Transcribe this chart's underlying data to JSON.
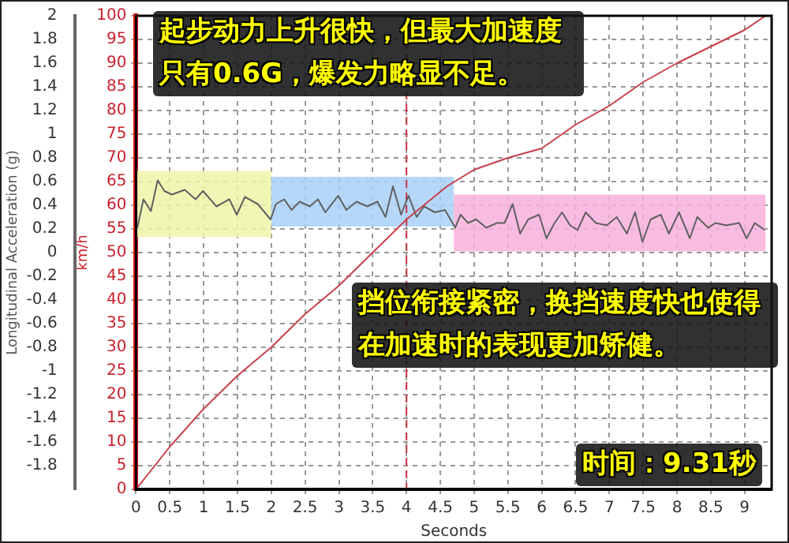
{
  "chart_data": {
    "type": "line",
    "xlabel": "Seconds",
    "ylabel": "Longitudinal Acceleration (g)",
    "y2label": "km/h",
    "annotations": [
      "起步动力上升很快，但最大加速度只有0.6G，爆发力略显不足。",
      "挡位衔接紧密，换挡速度快也使得在加速时的表现更加矫健。",
      "时间：9.31秒"
    ],
    "xlim": [
      0,
      9.4
    ],
    "xticks": [
      0,
      0.5,
      1,
      1.5,
      2,
      2.5,
      3,
      3.5,
      4,
      4.5,
      5,
      5.5,
      6,
      6.5,
      7,
      7.5,
      8,
      8.5,
      9
    ],
    "ylim": [
      -2,
      2
    ],
    "yticks": [
      -1.8,
      -1.6,
      -1.4,
      -1.2,
      -1,
      -0.8,
      -0.6,
      -0.4,
      -0.2,
      0,
      0.2,
      0.4,
      0.6,
      0.8,
      1,
      1.2,
      1.4,
      1.6,
      1.8,
      2
    ],
    "y2lim": [
      0,
      100
    ],
    "y2ticks": [
      0,
      5,
      10,
      15,
      20,
      25,
      30,
      35,
      40,
      45,
      50,
      55,
      60,
      65,
      70,
      75,
      80,
      85,
      90,
      95,
      100
    ],
    "grid": true,
    "legend": false,
    "marker": "none",
    "line_style": "solid",
    "ref_lines": [
      {
        "axis": "x",
        "value": 4,
        "label": null,
        "color": "#cc3344",
        "line_style": "dashed"
      }
    ],
    "bands": [
      {
        "axis": "x",
        "from": 0,
        "to": 2,
        "label": null,
        "color": "#eef5a8"
      },
      {
        "axis": "x",
        "from": 2,
        "to": 4.7,
        "label": null,
        "color": "#a8d0f8"
      },
      {
        "axis": "x",
        "from": 4.7,
        "to": 9.31,
        "label": null,
        "color": "#f8b0dc"
      }
    ],
    "series": [
      {
        "type": "line",
        "axis": "y2",
        "color": "#c8404c",
        "x": [
          0,
          0.5,
          1,
          1.5,
          2,
          2.5,
          3,
          3.5,
          4,
          4.6,
          5,
          5.5,
          6,
          6.5,
          7,
          7.5,
          8,
          8.5,
          9,
          9.31
        ],
        "values": [
          0,
          9,
          17,
          24,
          30,
          37,
          43,
          50,
          57,
          64,
          67.5,
          70,
          72,
          77,
          81,
          86,
          90,
          93.5,
          97,
          100
        ]
      },
      {
        "type": "line",
        "axis": "y",
        "color": "#606060",
        "x": [
          0.02,
          0.11,
          0.22,
          0.32,
          0.42,
          0.53,
          0.72,
          0.88,
          0.99,
          1.19,
          1.38,
          1.49,
          1.61,
          1.8,
          1.99,
          2.07,
          2.19,
          2.3,
          2.42,
          2.57,
          2.69,
          2.8,
          2.99,
          3.11,
          3.26,
          3.42,
          3.57,
          3.69,
          3.8,
          3.92,
          4.03,
          4.15,
          4.26,
          4.42,
          4.57,
          4.72,
          4.8,
          4.91,
          5.03,
          5.18,
          5.34,
          5.45,
          5.57,
          5.68,
          5.8,
          5.96,
          6.07,
          6.19,
          6.3,
          6.42,
          6.53,
          6.65,
          6.8,
          6.96,
          7.11,
          7.26,
          7.38,
          7.49,
          7.61,
          7.76,
          7.88,
          8.03,
          8.19,
          8.3,
          8.46,
          8.57,
          8.73,
          8.92,
          9.03,
          9.15,
          9.3
        ],
        "values": [
          0.21,
          0.45,
          0.35,
          0.61,
          0.52,
          0.49,
          0.53,
          0.45,
          0.52,
          0.39,
          0.45,
          0.32,
          0.47,
          0.41,
          0.28,
          0.41,
          0.45,
          0.36,
          0.43,
          0.39,
          0.45,
          0.34,
          0.48,
          0.36,
          0.43,
          0.39,
          0.43,
          0.3,
          0.56,
          0.32,
          0.48,
          0.3,
          0.39,
          0.34,
          0.36,
          0.21,
          0.32,
          0.25,
          0.28,
          0.21,
          0.25,
          0.25,
          0.41,
          0.16,
          0.28,
          0.32,
          0.12,
          0.25,
          0.34,
          0.23,
          0.19,
          0.34,
          0.25,
          0.23,
          0.3,
          0.16,
          0.34,
          0.09,
          0.28,
          0.32,
          0.16,
          0.34,
          0.12,
          0.3,
          0.21,
          0.25,
          0.23,
          0.25,
          0.12,
          0.25,
          0.19
        ]
      }
    ]
  }
}
